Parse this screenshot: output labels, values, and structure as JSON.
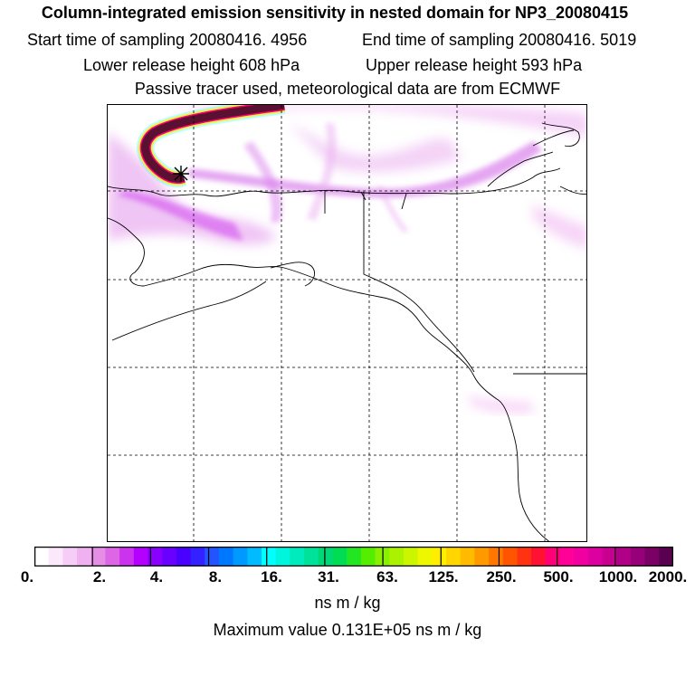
{
  "header": {
    "title": "Column-integrated emission sensitivity in nested domain for NP3_20080415",
    "start_time": "Start time of sampling 20080416.  4956",
    "end_time": "End time of sampling 20080416.  5019",
    "lower_height": "Lower release height  608 hPa",
    "upper_height": "Upper release height  593 hPa",
    "tracer_info": "Passive tracer used, meteorological data are from ECMWF"
  },
  "colorbar": {
    "labels": [
      "0.",
      "2.",
      "4.",
      "8.",
      "16.",
      "31.",
      "63.",
      "125.",
      "250.",
      "500.",
      "1000.",
      "2000."
    ],
    "colors": [
      "#ffffff",
      "#fbe8fb",
      "#f6cdf6",
      "#f0b1f0",
      "#e68de6",
      "#dc66e6",
      "#cc33ee",
      "#b300ff",
      "#8a00ff",
      "#6a00ff",
      "#4a00ff",
      "#3322ff",
      "#2255ff",
      "#0077ff",
      "#0099ff",
      "#00bbff",
      "#00ffff",
      "#00f5dd",
      "#00ebbb",
      "#00e199",
      "#00d777",
      "#00dd55",
      "#22e622",
      "#55ee00",
      "#88f000",
      "#aaf200",
      "#ccf500",
      "#eef700",
      "#ffee00",
      "#ffd600",
      "#ffbb00",
      "#ff9900",
      "#ff7700",
      "#ff5500",
      "#ff3311",
      "#ff1133",
      "#ff0077",
      "#ff0099",
      "#f000a0",
      "#dd00a0",
      "#c80090",
      "#b00088",
      "#960078",
      "#7a0065",
      "#5a0050"
    ],
    "units": "ns m / kg"
  },
  "max_value_text": "Maximum value  0.131E+05 ns m / kg",
  "map": {
    "release_marker": "release-point",
    "plume_color": "#5a1030",
    "sensitivity_color": "#cc33ee"
  }
}
